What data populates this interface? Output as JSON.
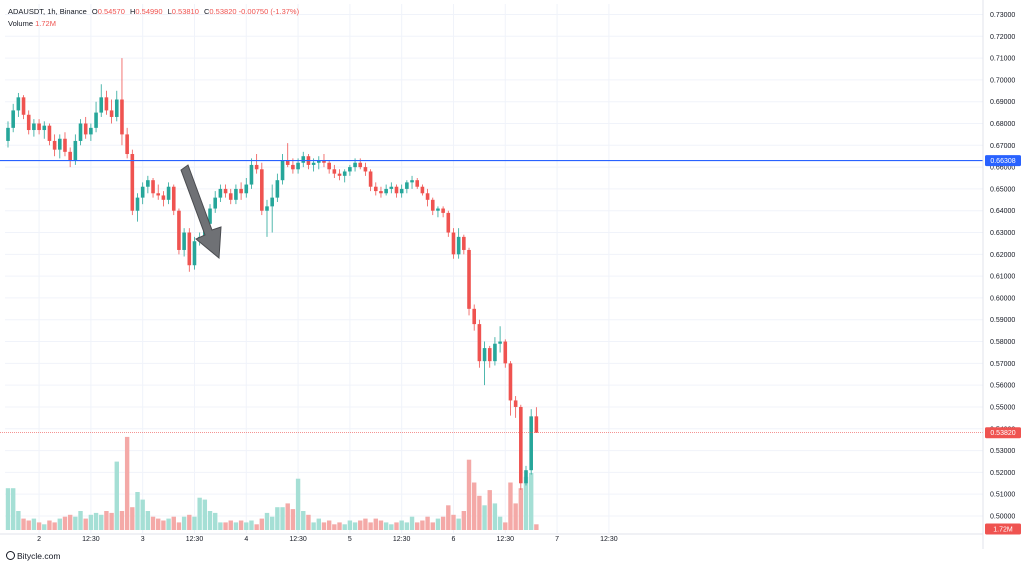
{
  "legend": {
    "symbol": "ADAUSDT",
    "interval": "1h",
    "exchange": "Binance",
    "open_label": "O",
    "open": "0.54570",
    "high_label": "H",
    "high": "0.54990",
    "low_label": "L",
    "low": "0.53810",
    "close_label": "C",
    "close": "0.53820",
    "change": "-0.00750 (-1.37%)",
    "volume_label": "Volume",
    "volume_value": "1.72M"
  },
  "watermark": "Bitycle.com",
  "colors": {
    "up": "#26a69a",
    "down": "#ef5350",
    "up_volume": "#a5dfd5",
    "down_volume": "#f4a9a7",
    "level_line": "#2962ff",
    "price_line": "#ef5350"
  },
  "chart_data": {
    "type": "candlestick",
    "title": "",
    "xlabel": "",
    "ylabel": "",
    "ylim": [
      0.4922,
      0.7348
    ],
    "y_ticks": [
      "0.73000",
      "0.72000",
      "0.71000",
      "0.70000",
      "0.69000",
      "0.68000",
      "0.67000",
      "0.66000",
      "0.65000",
      "0.64000",
      "0.63000",
      "0.62000",
      "0.61000",
      "0.60000",
      "0.59000",
      "0.58000",
      "0.57000",
      "0.56000",
      "0.55000",
      "0.54000",
      "0.53000",
      "0.52000",
      "0.51000",
      "0.50000"
    ],
    "x_ticks": [
      {
        "label": "2",
        "bar": 6
      },
      {
        "label": "12:30",
        "bar": 16
      },
      {
        "label": "3",
        "bar": 26
      },
      {
        "label": "12:30",
        "bar": 36
      },
      {
        "label": "4",
        "bar": 46
      },
      {
        "label": "12:30",
        "bar": 56
      },
      {
        "label": "5",
        "bar": 66
      },
      {
        "label": "12:30",
        "bar": 76
      },
      {
        "label": "6",
        "bar": 86
      },
      {
        "label": "12:30",
        "bar": 96
      },
      {
        "label": "7",
        "bar": 106
      },
      {
        "label": "12:30",
        "bar": 116
      }
    ],
    "horizontal_level": {
      "value": 0.663,
      "label": "0.66308"
    },
    "last_price": {
      "value": 0.5382,
      "label": "0.53820"
    },
    "volume_label": {
      "label": "1.72M"
    },
    "candles": [
      [
        0.672,
        0.681,
        0.669,
        0.678
      ],
      [
        0.678,
        0.689,
        0.676,
        0.686
      ],
      [
        0.686,
        0.694,
        0.683,
        0.692
      ],
      [
        0.692,
        0.693,
        0.682,
        0.684
      ],
      [
        0.684,
        0.686,
        0.675,
        0.677
      ],
      [
        0.677,
        0.682,
        0.674,
        0.68
      ],
      [
        0.68,
        0.682,
        0.675,
        0.677
      ],
      [
        0.677,
        0.681,
        0.673,
        0.679
      ],
      [
        0.679,
        0.68,
        0.67,
        0.672
      ],
      [
        0.672,
        0.675,
        0.665,
        0.668
      ],
      [
        0.668,
        0.675,
        0.664,
        0.673
      ],
      [
        0.673,
        0.676,
        0.665,
        0.667
      ],
      [
        0.667,
        0.669,
        0.66,
        0.663
      ],
      [
        0.663,
        0.675,
        0.661,
        0.672
      ],
      [
        0.672,
        0.682,
        0.67,
        0.68
      ],
      [
        0.68,
        0.683,
        0.673,
        0.675
      ],
      [
        0.675,
        0.68,
        0.672,
        0.678
      ],
      [
        0.678,
        0.69,
        0.676,
        0.685
      ],
      [
        0.685,
        0.698,
        0.683,
        0.692
      ],
      [
        0.692,
        0.695,
        0.684,
        0.686
      ],
      [
        0.686,
        0.691,
        0.68,
        0.683
      ],
      [
        0.683,
        0.695,
        0.681,
        0.691
      ],
      [
        0.691,
        0.71,
        0.67,
        0.675
      ],
      [
        0.675,
        0.678,
        0.664,
        0.666
      ],
      [
        0.666,
        0.668,
        0.638,
        0.64
      ],
      [
        0.64,
        0.648,
        0.635,
        0.646
      ],
      [
        0.646,
        0.653,
        0.643,
        0.651
      ],
      [
        0.651,
        0.656,
        0.648,
        0.654
      ],
      [
        0.654,
        0.655,
        0.646,
        0.648
      ],
      [
        0.648,
        0.652,
        0.645,
        0.647
      ],
      [
        0.647,
        0.649,
        0.642,
        0.645
      ],
      [
        0.645,
        0.653,
        0.643,
        0.651
      ],
      [
        0.651,
        0.652,
        0.638,
        0.64
      ],
      [
        0.64,
        0.641,
        0.62,
        0.622
      ],
      [
        0.622,
        0.632,
        0.619,
        0.63
      ],
      [
        0.63,
        0.632,
        0.612,
        0.615
      ],
      [
        0.615,
        0.628,
        0.613,
        0.626
      ],
      [
        0.626,
        0.63,
        0.624,
        0.628
      ],
      [
        0.628,
        0.637,
        0.626,
        0.634
      ],
      [
        0.634,
        0.643,
        0.632,
        0.641
      ],
      [
        0.641,
        0.649,
        0.639,
        0.646
      ],
      [
        0.646,
        0.652,
        0.644,
        0.65
      ],
      [
        0.65,
        0.652,
        0.646,
        0.648
      ],
      [
        0.648,
        0.65,
        0.643,
        0.645
      ],
      [
        0.645,
        0.652,
        0.643,
        0.65
      ],
      [
        0.65,
        0.653,
        0.645,
        0.648
      ],
      [
        0.648,
        0.655,
        0.646,
        0.652
      ],
      [
        0.652,
        0.664,
        0.65,
        0.661
      ],
      [
        0.661,
        0.666,
        0.657,
        0.659
      ],
      [
        0.659,
        0.662,
        0.638,
        0.64
      ],
      [
        0.64,
        0.645,
        0.628,
        0.642
      ],
      [
        0.642,
        0.652,
        0.63,
        0.646
      ],
      [
        0.646,
        0.657,
        0.644,
        0.654
      ],
      [
        0.654,
        0.666,
        0.652,
        0.663
      ],
      [
        0.663,
        0.671,
        0.66,
        0.661
      ],
      [
        0.661,
        0.664,
        0.657,
        0.659
      ],
      [
        0.659,
        0.664,
        0.657,
        0.662
      ],
      [
        0.662,
        0.667,
        0.66,
        0.665
      ],
      [
        0.665,
        0.666,
        0.659,
        0.661
      ],
      [
        0.661,
        0.664,
        0.658,
        0.662
      ],
      [
        0.662,
        0.665,
        0.659,
        0.663
      ],
      [
        0.663,
        0.666,
        0.66,
        0.662
      ],
      [
        0.662,
        0.663,
        0.657,
        0.659
      ],
      [
        0.659,
        0.661,
        0.655,
        0.657
      ],
      [
        0.657,
        0.659,
        0.654,
        0.656
      ],
      [
        0.656,
        0.659,
        0.653,
        0.658
      ],
      [
        0.658,
        0.661,
        0.656,
        0.66
      ],
      [
        0.66,
        0.664,
        0.658,
        0.662
      ],
      [
        0.662,
        0.664,
        0.659,
        0.66
      ],
      [
        0.66,
        0.662,
        0.656,
        0.658
      ],
      [
        0.658,
        0.659,
        0.649,
        0.651
      ],
      [
        0.651,
        0.653,
        0.647,
        0.649
      ],
      [
        0.649,
        0.651,
        0.646,
        0.648
      ],
      [
        0.648,
        0.652,
        0.647,
        0.65
      ],
      [
        0.65,
        0.653,
        0.648,
        0.651
      ],
      [
        0.651,
        0.652,
        0.646,
        0.648
      ],
      [
        0.648,
        0.652,
        0.646,
        0.65
      ],
      [
        0.65,
        0.654,
        0.648,
        0.653
      ],
      [
        0.653,
        0.656,
        0.65,
        0.654
      ],
      [
        0.654,
        0.655,
        0.65,
        0.651
      ],
      [
        0.651,
        0.652,
        0.647,
        0.648
      ],
      [
        0.648,
        0.65,
        0.642,
        0.645
      ],
      [
        0.645,
        0.646,
        0.638,
        0.64
      ],
      [
        0.64,
        0.642,
        0.637,
        0.641
      ],
      [
        0.641,
        0.642,
        0.637,
        0.639
      ],
      [
        0.639,
        0.64,
        0.628,
        0.63
      ],
      [
        0.63,
        0.632,
        0.618,
        0.62
      ],
      [
        0.62,
        0.632,
        0.618,
        0.628
      ],
      [
        0.628,
        0.629,
        0.62,
        0.622
      ],
      [
        0.622,
        0.623,
        0.592,
        0.595
      ],
      [
        0.595,
        0.597,
        0.585,
        0.588
      ],
      [
        0.588,
        0.59,
        0.568,
        0.571
      ],
      [
        0.571,
        0.58,
        0.56,
        0.577
      ],
      [
        0.577,
        0.578,
        0.568,
        0.571
      ],
      [
        0.571,
        0.582,
        0.569,
        0.579
      ],
      [
        0.579,
        0.587,
        0.575,
        0.58
      ],
      [
        0.58,
        0.581,
        0.568,
        0.57
      ],
      [
        0.57,
        0.571,
        0.546,
        0.553
      ],
      [
        0.553,
        0.555,
        0.545,
        0.55
      ],
      [
        0.55,
        0.551,
        0.512,
        0.515
      ],
      [
        0.515,
        0.523,
        0.514,
        0.521
      ],
      [
        0.521,
        0.549,
        0.519,
        0.5457
      ],
      [
        0.5457,
        0.5499,
        0.5381,
        0.5382
      ]
    ],
    "volume": [
      0.22,
      0.22,
      0.1,
      0.06,
      0.05,
      0.06,
      0.04,
      0.03,
      0.05,
      0.04,
      0.06,
      0.07,
      0.08,
      0.07,
      0.1,
      0.06,
      0.08,
      0.09,
      0.08,
      0.1,
      0.09,
      0.36,
      0.1,
      0.49,
      0.12,
      0.2,
      0.16,
      0.1,
      0.07,
      0.06,
      0.05,
      0.06,
      0.07,
      0.04,
      0.07,
      0.08,
      0.07,
      0.17,
      0.16,
      0.1,
      0.09,
      0.04,
      0.04,
      0.05,
      0.04,
      0.05,
      0.04,
      0.05,
      0.03,
      0.06,
      0.09,
      0.07,
      0.12,
      0.12,
      0.14,
      0.11,
      0.27,
      0.1,
      0.08,
      0.04,
      0.06,
      0.04,
      0.05,
      0.03,
      0.04,
      0.03,
      0.05,
      0.04,
      0.05,
      0.06,
      0.04,
      0.06,
      0.05,
      0.04,
      0.03,
      0.04,
      0.05,
      0.04,
      0.07,
      0.04,
      0.05,
      0.07,
      0.04,
      0.06,
      0.07,
      0.13,
      0.08,
      0.06,
      0.1,
      0.37,
      0.25,
      0.18,
      0.13,
      0.21,
      0.14,
      0.07,
      0.04,
      0.25,
      0.14,
      0.22,
      0.28,
      0.3,
      0.03
    ]
  }
}
